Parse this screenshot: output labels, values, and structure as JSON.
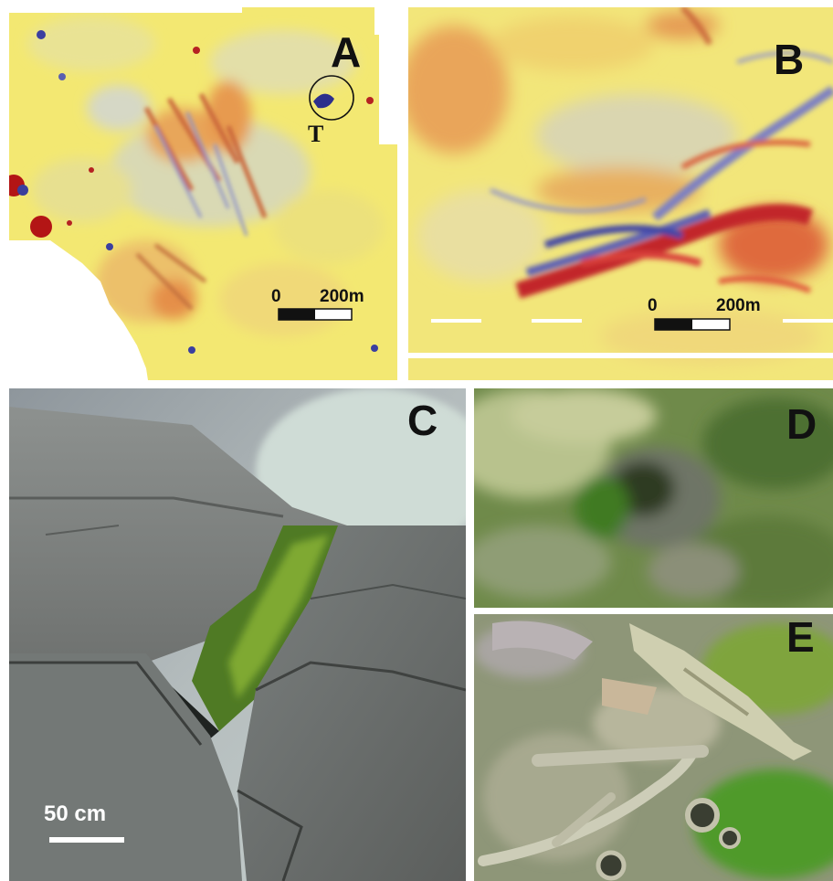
{
  "panels": {
    "a": {
      "letter": "A",
      "scale_start": "0",
      "scale_end": "200m",
      "target_label": "T"
    },
    "b": {
      "letter": "B",
      "scale_start": "0",
      "scale_end": "200m"
    },
    "c": {
      "letter": "C",
      "scale_label": "50 cm"
    },
    "d": {
      "letter": "D"
    },
    "e": {
      "letter": "E"
    }
  }
}
